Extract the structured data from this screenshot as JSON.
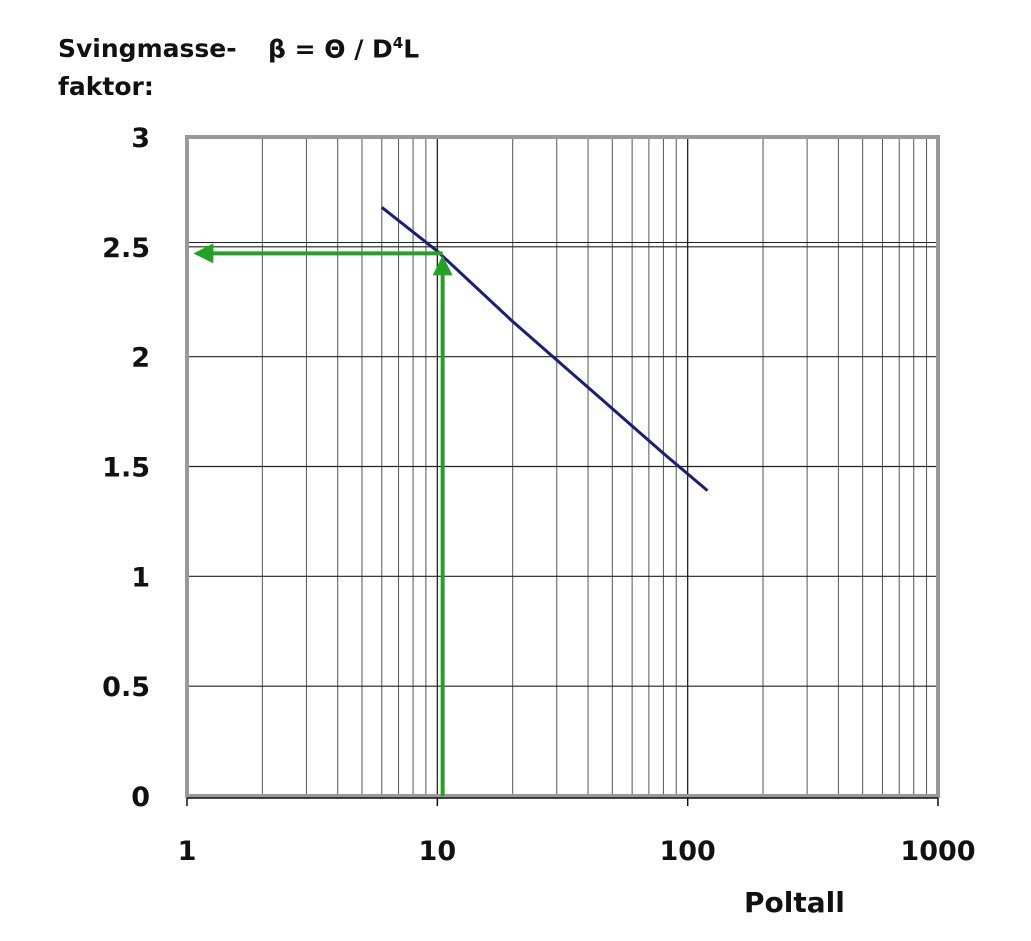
{
  "chart_data": {
    "type": "line",
    "title": "",
    "ylabel": "Svingmasse-faktor:",
    "formula": {
      "lhs": "β = Θ / D",
      "sup": "4",
      "rhs": "L"
    },
    "xlabel": "Poltall",
    "xscale": "log",
    "xlim": [
      1,
      1000
    ],
    "ylim": [
      0,
      3
    ],
    "x_ticks": [
      1,
      10,
      100,
      1000
    ],
    "x_tick_labels": [
      "1",
      "10",
      "100",
      "1000"
    ],
    "y_ticks": [
      0,
      0.5,
      1,
      1.5,
      2,
      2.5,
      3
    ],
    "y_tick_labels": [
      "0",
      "0.5",
      "1",
      "1.5",
      "2",
      "2.5",
      "3"
    ],
    "grid": true,
    "series": [
      {
        "color": "#1b1e78",
        "x": [
          6,
          10,
          20,
          40,
          80,
          120
        ],
        "y": [
          2.68,
          2.48,
          2.16,
          1.86,
          1.56,
          1.39
        ]
      }
    ],
    "annotations": [
      {
        "kind": "arrow-path",
        "color": "#23a323",
        "points": [
          [
            10.5,
            0
          ],
          [
            10.5,
            2.47
          ],
          [
            1.1,
            2.47
          ]
        ]
      }
    ]
  }
}
